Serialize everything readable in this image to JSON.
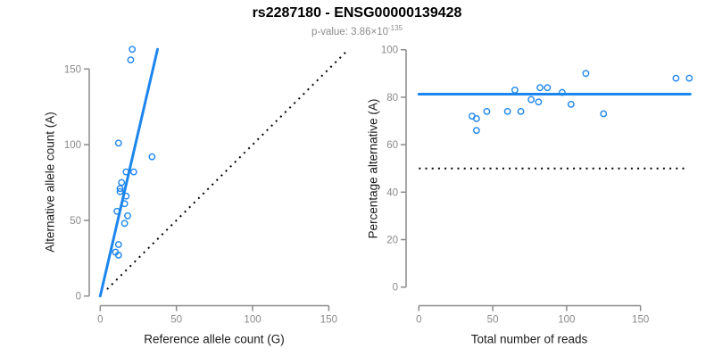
{
  "header": {
    "title": "rs2287180 - ENSG00000139428",
    "pvalue_prefix": "p-value: 3.86×10",
    "pvalue_exponent": "-135"
  },
  "colors": {
    "accent_blue": "#1C86EE",
    "dotted_line": "#000000",
    "axis": "#8a8a8a",
    "tick_label": "#8a8a8a",
    "axis_title": "#1a1a1a",
    "subtitle": "#8c8c8c",
    "background": "#ffffff"
  },
  "chart_data": [
    {
      "type": "scatter",
      "panel": "left",
      "xlabel": "Reference allele count (G)",
      "ylabel": "Alternative allele count (A)",
      "xticks": [
        0,
        50,
        100,
        150
      ],
      "yticks": [
        0,
        50,
        100,
        150
      ],
      "xlim": [
        0,
        155
      ],
      "ylim": [
        0,
        165
      ],
      "grid": false,
      "points": [
        [
          21,
          163
        ],
        [
          20,
          156
        ],
        [
          12,
          101
        ],
        [
          34,
          92
        ],
        [
          17,
          82
        ],
        [
          22,
          82
        ],
        [
          14,
          75
        ],
        [
          13,
          71
        ],
        [
          13,
          69
        ],
        [
          17,
          66
        ],
        [
          16,
          61
        ],
        [
          11,
          56
        ],
        [
          18,
          53
        ],
        [
          16,
          48
        ],
        [
          12,
          34
        ],
        [
          10,
          29
        ],
        [
          12,
          27
        ]
      ],
      "lines": [
        {
          "name": "regression-line",
          "style": "solid",
          "color_key": "accent_blue",
          "width": 3,
          "pts": [
            [
              0,
              0
            ],
            [
              37.6,
              163
            ]
          ]
        },
        {
          "name": "identity-line",
          "style": "dotted",
          "color_key": "dotted_line",
          "width": 2,
          "slope": 1,
          "intercept": 0,
          "pts": [
            [
              4.5,
              4.5
            ],
            [
              161.5,
              161.5
            ]
          ]
        }
      ]
    },
    {
      "type": "scatter",
      "panel": "right",
      "xlabel": "Total number of reads",
      "ylabel": "Percentage alternative (A)",
      "xticks": [
        0,
        50,
        100,
        150
      ],
      "yticks": [
        0,
        20,
        40,
        60,
        80,
        100
      ],
      "xlim": [
        0,
        184
      ],
      "ylim": [
        0,
        100
      ],
      "grid": false,
      "points": [
        [
          36,
          72
        ],
        [
          39,
          71
        ],
        [
          39,
          66
        ],
        [
          46,
          74
        ],
        [
          60,
          74
        ],
        [
          65,
          83
        ],
        [
          69,
          74
        ],
        [
          76,
          79
        ],
        [
          81,
          78
        ],
        [
          82,
          84
        ],
        [
          87,
          84
        ],
        [
          97,
          82
        ],
        [
          103,
          77
        ],
        [
          113,
          90
        ],
        [
          125,
          73
        ],
        [
          174,
          88
        ],
        [
          183,
          88
        ]
      ],
      "lines": [
        {
          "name": "fit-line",
          "style": "solid",
          "color_key": "accent_blue",
          "width": 3,
          "value": 81.3,
          "pts": [
            [
              0,
              81.3
            ],
            [
              183.6,
              81.3
            ]
          ]
        },
        {
          "name": "null-line",
          "style": "dotted",
          "color_key": "dotted_line",
          "width": 2,
          "value": 50,
          "pts": [
            [
              0,
              50
            ],
            [
              181,
              50
            ]
          ]
        }
      ]
    }
  ]
}
